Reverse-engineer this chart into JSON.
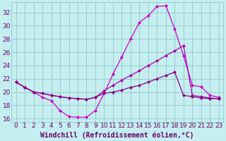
{
  "bg_color": "#c5eef0",
  "grid_color": "#99cccc",
  "line_color_a": "#cc00cc",
  "line_color_b": "#aa00aa",
  "line_color_c": "#880088",
  "xlim": [
    -0.5,
    23.5
  ],
  "ylim": [
    15.5,
    33.5
  ],
  "xticks": [
    0,
    1,
    2,
    3,
    4,
    5,
    6,
    7,
    8,
    9,
    10,
    11,
    12,
    13,
    14,
    15,
    16,
    17,
    18,
    19,
    20,
    21,
    22,
    23
  ],
  "yticks": [
    16,
    18,
    20,
    22,
    24,
    26,
    28,
    30,
    32
  ],
  "line1_x": [
    0,
    1,
    2,
    3,
    4,
    5,
    6,
    7,
    8,
    9,
    10,
    11,
    12,
    13,
    14,
    15,
    16,
    17,
    18,
    19,
    20,
    21,
    22,
    23
  ],
  "line1_y": [
    21.5,
    20.7,
    20.0,
    19.2,
    18.7,
    17.2,
    16.3,
    16.2,
    16.2,
    17.2,
    19.8,
    22.7,
    25.3,
    28.0,
    30.5,
    31.5,
    32.9,
    33.0,
    29.5,
    25.5,
    21.0,
    20.8,
    19.5,
    19.2
  ],
  "line2_x": [
    0,
    1,
    2,
    3,
    4,
    5,
    6,
    7,
    8,
    9,
    10,
    11,
    12,
    13,
    14,
    15,
    16,
    17,
    18,
    19,
    20,
    21,
    22,
    23
  ],
  "line2_y": [
    21.5,
    20.7,
    20.0,
    19.8,
    19.5,
    19.3,
    19.1,
    19.0,
    18.9,
    19.2,
    20.2,
    21.0,
    21.8,
    22.5,
    23.2,
    24.0,
    24.7,
    25.5,
    26.2,
    27.0,
    19.5,
    19.3,
    19.1,
    19.0
  ],
  "line3_x": [
    0,
    1,
    2,
    3,
    4,
    5,
    6,
    7,
    8,
    9,
    10,
    11,
    12,
    13,
    14,
    15,
    16,
    17,
    18,
    19,
    20,
    21,
    22,
    23
  ],
  "line3_y": [
    21.5,
    20.7,
    20.0,
    19.8,
    19.5,
    19.3,
    19.1,
    19.0,
    18.9,
    19.2,
    19.8,
    20.0,
    20.3,
    20.7,
    21.0,
    21.5,
    22.0,
    22.5,
    23.0,
    19.5,
    19.3,
    19.1,
    19.0,
    19.0
  ],
  "xlabel": "Windchill (Refroidissement éolien,°C)",
  "xlabel_color": "#660066",
  "tick_color": "#660066",
  "font_size_xlabel": 7,
  "font_size_tick": 6.5
}
